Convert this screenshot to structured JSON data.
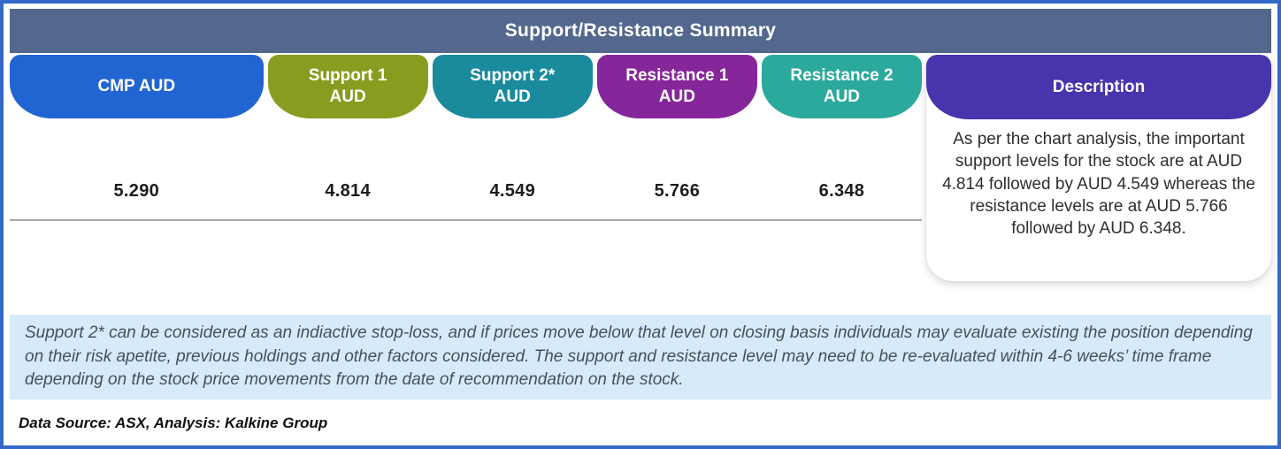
{
  "header": {
    "title": "Support/Resistance Summary",
    "bg_color": "#54688E"
  },
  "table": {
    "columns": [
      {
        "label": "CMP AUD",
        "value": "5.290",
        "color": "#2165D2"
      },
      {
        "label": "Support 1\nAUD",
        "value": "4.814",
        "color": "#8A9C1F"
      },
      {
        "label": "Support 2*\nAUD",
        "value": "4.549",
        "color": "#1A8A9D"
      },
      {
        "label": "Resistance 1\nAUD",
        "value": "5.766",
        "color": "#86269B"
      },
      {
        "label": "Resistance 2\nAUD",
        "value": "6.348",
        "color": "#2BA99C"
      }
    ],
    "description": {
      "label": "Description",
      "color": "#4635AD",
      "text": "As per the chart analysis, the important support levels for the stock are at AUD 4.814 followed by AUD 4.549 whereas the resistance levels are at AUD 5.766 followed by AUD 6.348."
    }
  },
  "note": {
    "bg_color": "#D7EAF9",
    "text": "Support 2* can be considered as an indiactive stop-loss, and if prices move below that level on closing basis individuals may evaluate existing the position depending on their risk apetite, previous holdings and other factors considered. The support and resistance level may need to be re-evaluated within 4-6 weeks’ time frame depending on the stock price movements from  the date of recommendation on the stock."
  },
  "footer": {
    "data_source": "Data Source: ASX, Analysis: Kalkine Group"
  },
  "chart_data": {
    "type": "table",
    "title": "Support/Resistance Summary",
    "columns": [
      "CMP AUD",
      "Support 1 AUD",
      "Support 2* AUD",
      "Resistance 1 AUD",
      "Resistance 2 AUD"
    ],
    "values": [
      5.29,
      4.814,
      4.549,
      5.766,
      6.348
    ],
    "currency": "AUD"
  }
}
